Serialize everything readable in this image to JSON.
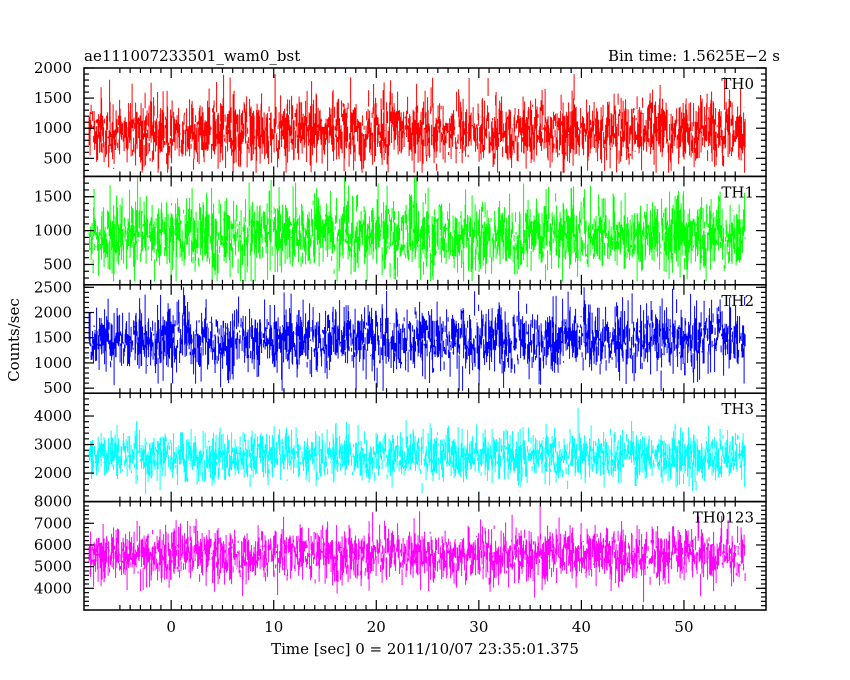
{
  "chart_data": {
    "type": "line",
    "title_left": "ae111007233501_wam0_bst",
    "title_right": "Bin time: 1.5625E−2 s",
    "xlabel": "Time [sec] 0 = 2011/10/07 23:35:01.375",
    "ylabel": "Counts/sec",
    "xlim": [
      -8.5,
      58
    ],
    "data_xrange": [
      -8,
      56
    ],
    "bin_time": 0.015625,
    "x_ticks": [
      0,
      10,
      20,
      30,
      40,
      50
    ],
    "grid": false,
    "panels": [
      {
        "name": "TH0",
        "color": "#ff0000",
        "ylim": [
          200,
          2000
        ],
        "y_ticks": [
          500,
          1000,
          1500,
          2000
        ],
        "mean": 950,
        "spread": 300,
        "min_level": 260,
        "max_level": 1980
      },
      {
        "name": "TH1",
        "color": "#00ff00",
        "ylim": [
          200,
          1800
        ],
        "y_ticks": [
          500,
          1000,
          1500
        ],
        "mean": 930,
        "spread": 280,
        "min_level": 250,
        "max_level": 1790
      },
      {
        "name": "TH2",
        "color": "#0000ff",
        "ylim": [
          400,
          2550
        ],
        "y_ticks": [
          500,
          1000,
          1500,
          2000,
          2500
        ],
        "mean": 1450,
        "spread": 330,
        "min_level": 450,
        "max_level": 2500
      },
      {
        "name": "TH3",
        "color": "#00ffff",
        "ylim": [
          1000,
          4800
        ],
        "y_ticks": [
          2000,
          3000,
          4000
        ],
        "mean": 2600,
        "spread": 420,
        "min_level": 1250,
        "max_level": 4700
      },
      {
        "name": "TH0123",
        "color": "#ff00ff",
        "ylim": [
          3000,
          8000
        ],
        "y_ticks": [
          4000,
          5000,
          6000,
          7000,
          8000
        ],
        "mean": 5550,
        "spread": 650,
        "min_level": 3050,
        "max_level": 7950
      }
    ]
  }
}
